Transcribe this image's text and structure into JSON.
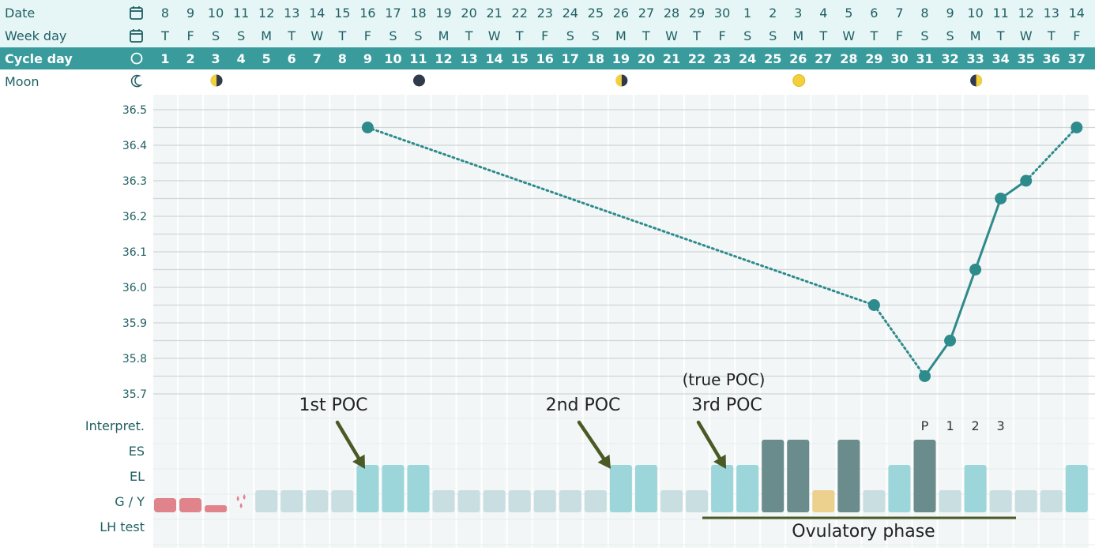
{
  "header": {
    "row_labels": {
      "date": "Date",
      "weekday": "Week day",
      "cycle": "Cycle day",
      "moon": "Moon"
    },
    "dates": [
      "8",
      "9",
      "10",
      "11",
      "12",
      "13",
      "14",
      "15",
      "16",
      "17",
      "18",
      "19",
      "20",
      "21",
      "22",
      "23",
      "24",
      "25",
      "26",
      "27",
      "28",
      "29",
      "30",
      "1",
      "2",
      "3",
      "4",
      "5",
      "6",
      "7",
      "8",
      "9",
      "10",
      "11",
      "12",
      "13",
      "14"
    ],
    "weekdays": [
      "T",
      "F",
      "S",
      "S",
      "M",
      "T",
      "W",
      "T",
      "F",
      "S",
      "S",
      "M",
      "T",
      "W",
      "T",
      "F",
      "S",
      "S",
      "M",
      "T",
      "W",
      "T",
      "F",
      "S",
      "S",
      "M",
      "T",
      "W",
      "T",
      "F",
      "S",
      "S",
      "M",
      "T",
      "W",
      "T",
      "F"
    ],
    "cycle_days": [
      "1",
      "2",
      "3",
      "4",
      "5",
      "6",
      "7",
      "8",
      "9",
      "10",
      "11",
      "12",
      "13",
      "14",
      "15",
      "16",
      "17",
      "18",
      "19",
      "20",
      "21",
      "22",
      "23",
      "24",
      "25",
      "26",
      "27",
      "28",
      "29",
      "30",
      "31",
      "32",
      "33",
      "34",
      "35",
      "36",
      "37"
    ],
    "moon_phases": [
      {
        "day": 3,
        "phase": "first-quarter"
      },
      {
        "day": 11,
        "phase": "new-moon"
      },
      {
        "day": 19,
        "phase": "first-quarter"
      },
      {
        "day": 26,
        "phase": "full-moon"
      },
      {
        "day": 33,
        "phase": "last-quarter"
      }
    ]
  },
  "bottom_rows": {
    "labels": {
      "interp": "Interpret.",
      "es": "ES",
      "el": "EL",
      "gy": "G / Y",
      "lh": "LH test"
    },
    "interpretation": [
      {
        "day": 31,
        "text": "P"
      },
      {
        "day": 32,
        "text": "1"
      },
      {
        "day": 33,
        "text": "2"
      },
      {
        "day": 34,
        "text": "3"
      }
    ]
  },
  "annotations": {
    "poc1": "1st POC",
    "poc2": "2nd POC",
    "poc3": "3rd POC",
    "true_poc": "(true POC)",
    "phase": "Ovulatory phase"
  },
  "colors": {
    "header_bg": "#e6f6f7",
    "cycle_bar": "#3a9b9c",
    "line": "#2e8b8c",
    "grid": "#cfd6d8",
    "col_stripe": "#f3f6f7",
    "mucus_light": "#c8dee1",
    "mucus_mid": "#9dd6da",
    "mucus_dark": "#6b8c8c",
    "mucus_yellow": "#ecd08e",
    "bleeding": "#e0838b",
    "arrow": "#4a5a25",
    "true_poc": "#d5785b"
  },
  "chart_data": {
    "type": "line",
    "title": "",
    "xlabel": "Cycle day",
    "ylabel": "",
    "ylim": [
      35.7,
      36.5
    ],
    "yticks": [
      "36.5",
      "36.4",
      "36.3",
      "36.2",
      "36.1",
      "36.0",
      "35.9",
      "35.8",
      "35.7"
    ],
    "points": [
      {
        "day": 9,
        "temp": 36.45
      },
      {
        "day": 29,
        "temp": 35.95
      },
      {
        "day": 31,
        "temp": 35.75
      },
      {
        "day": 32,
        "temp": 35.85
      },
      {
        "day": 33,
        "temp": 36.05
      },
      {
        "day": 34,
        "temp": 36.25
      },
      {
        "day": 35,
        "temp": 36.3
      },
      {
        "day": 37,
        "temp": 36.45
      }
    ],
    "mucus": [
      {
        "day": 1,
        "level": "bleeding"
      },
      {
        "day": 2,
        "level": "bleeding"
      },
      {
        "day": 3,
        "level": "bleeding-light"
      },
      {
        "day": 4,
        "level": "spotting"
      },
      {
        "day": 5,
        "level": "gy"
      },
      {
        "day": 6,
        "level": "gy"
      },
      {
        "day": 7,
        "level": "gy"
      },
      {
        "day": 8,
        "level": "gy"
      },
      {
        "day": 9,
        "level": "el"
      },
      {
        "day": 10,
        "level": "el"
      },
      {
        "day": 11,
        "level": "el"
      },
      {
        "day": 12,
        "level": "gy"
      },
      {
        "day": 13,
        "level": "gy"
      },
      {
        "day": 14,
        "level": "gy"
      },
      {
        "day": 15,
        "level": "gy"
      },
      {
        "day": 16,
        "level": "gy"
      },
      {
        "day": 17,
        "level": "gy"
      },
      {
        "day": 18,
        "level": "gy"
      },
      {
        "day": 19,
        "level": "el"
      },
      {
        "day": 20,
        "level": "el"
      },
      {
        "day": 21,
        "level": "gy"
      },
      {
        "day": 22,
        "level": "gy"
      },
      {
        "day": 23,
        "level": "el"
      },
      {
        "day": 24,
        "level": "el"
      },
      {
        "day": 25,
        "level": "es"
      },
      {
        "day": 26,
        "level": "es"
      },
      {
        "day": 27,
        "level": "gy-yellow"
      },
      {
        "day": 28,
        "level": "es"
      },
      {
        "day": 29,
        "level": "gy"
      },
      {
        "day": 30,
        "level": "el"
      },
      {
        "day": 31,
        "level": "es"
      },
      {
        "day": 32,
        "level": "gy"
      },
      {
        "day": 33,
        "level": "el"
      },
      {
        "day": 34,
        "level": "gy"
      },
      {
        "day": 35,
        "level": "gy"
      },
      {
        "day": 36,
        "level": "gy"
      },
      {
        "day": 37,
        "level": "el"
      }
    ],
    "ovulatory_phase": {
      "start_day": 23,
      "end_day": 34
    }
  }
}
